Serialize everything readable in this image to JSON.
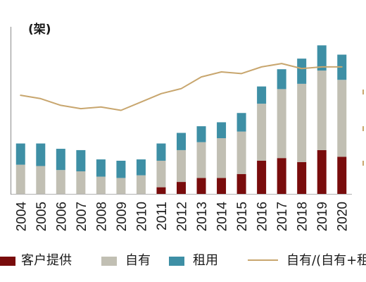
{
  "chart_data": {
    "type": "bar",
    "stacked": true,
    "ylabel": "(架)",
    "categories": [
      "2004",
      "2005",
      "2006",
      "2007",
      "2008",
      "2009",
      "2010",
      "2011",
      "2012",
      "2013",
      "2014",
      "2015",
      "2016",
      "2017",
      "2018",
      "2019",
      "2020"
    ],
    "series": [
      {
        "name": "客户提供",
        "type": "bar",
        "color": "#790c0c",
        "values": [
          0,
          0,
          0,
          0,
          0,
          0,
          0,
          5,
          9,
          12,
          12,
          15,
          25,
          27,
          24,
          33,
          28
        ]
      },
      {
        "name": "自有",
        "type": "bar",
        "color": "#c1bfb3",
        "values": [
          22,
          21,
          18,
          17,
          13,
          12,
          14,
          20,
          24,
          27,
          30,
          32,
          43,
          52,
          59,
          60,
          58
        ]
      },
      {
        "name": "租用",
        "type": "bar",
        "color": "#3e8fa5",
        "values": [
          16,
          17,
          16,
          16,
          13,
          13,
          12,
          13,
          13,
          12,
          12,
          14,
          13,
          15,
          19,
          19,
          19
        ]
      },
      {
        "name": "自有/(自有+租",
        "type": "line",
        "axis": "right",
        "color": "#c8a66e",
        "values": [
          59,
          57,
          53,
          51,
          52,
          50,
          55,
          60,
          63,
          70,
          73,
          72,
          76,
          78,
          75,
          76,
          76
        ]
      }
    ],
    "ylim": [
      0,
      126
    ],
    "y2lim": [
      0,
      100
    ],
    "grid": false,
    "legend": "bottom"
  }
}
